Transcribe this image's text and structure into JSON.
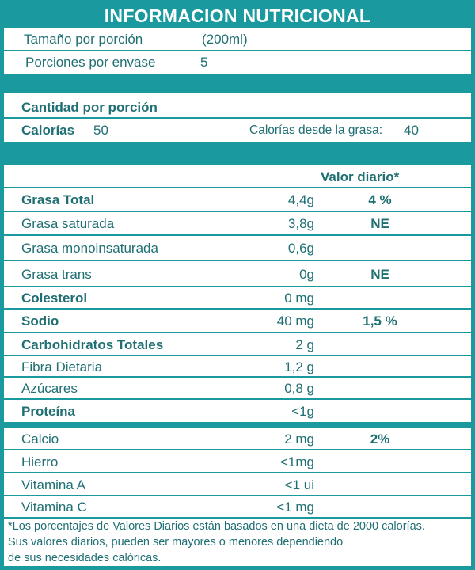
{
  "title": "INFORMACION NUTRICIONAL",
  "serving": {
    "size_label": "Tamaño por porción",
    "size_value": "(200ml)",
    "servings_label": "Porciones por envase",
    "servings_value": "5"
  },
  "amount_per_serving": "Cantidad por porción",
  "calories": {
    "label": "Calorías",
    "value": "50",
    "from_fat_label": "Calorías desde la grasa:",
    "from_fat_value": "40"
  },
  "daily_value_header": "Valor diario*",
  "nutrients": [
    {
      "name": "Grasa Total",
      "amount": "4,4g",
      "dv": "4 %"
    },
    {
      "name": "Grasa saturada",
      "amount": "3,8g",
      "dv": "NE"
    },
    {
      "name": "Grasa monoinsaturada",
      "amount": "0,6g",
      "dv": ""
    },
    {
      "name": "Grasa trans",
      "amount": "0g",
      "dv": "NE"
    },
    {
      "name": "Colesterol",
      "amount": "0 mg",
      "dv": ""
    },
    {
      "name": "Sodio",
      "amount": "40 mg",
      "dv": "1,5 %"
    },
    {
      "name": "Carbohidratos Totales",
      "amount": "2 g",
      "dv": ""
    },
    {
      "name": "Fibra Dietaria",
      "amount": "1,2 g",
      "dv": ""
    },
    {
      "name": "Azúcares",
      "amount": "0,8 g",
      "dv": ""
    },
    {
      "name": "Proteína",
      "amount": "<1g",
      "dv": ""
    }
  ],
  "vitamins": [
    {
      "name": "Calcio",
      "amount": "2 mg",
      "dv": "2%"
    },
    {
      "name": "Hierro",
      "amount": "<1mg",
      "dv": ""
    },
    {
      "name": "Vitamina A",
      "amount": "<1  ui",
      "dv": ""
    },
    {
      "name": "Vitamina C",
      "amount": "<1 mg",
      "dv": ""
    }
  ],
  "footnote": [
    "*Los porcentajes de Valores Diarios están basados en una dieta de 2000 calorías.",
    "Sus valores diarios, pueden ser mayores o menores dependiendo",
    "de sus necesidades calóricas."
  ],
  "colors": {
    "teal": "#1a9a9f",
    "text": "#1f6f73"
  }
}
